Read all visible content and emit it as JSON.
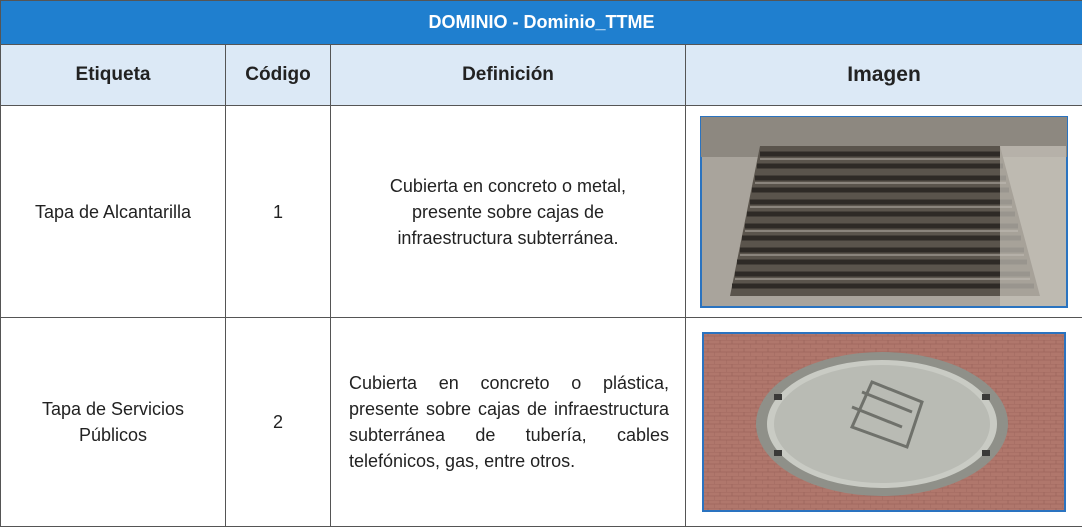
{
  "header": {
    "title": "DOMINIO -  Dominio_TTME"
  },
  "table": {
    "columns": [
      "Etiqueta",
      "Código",
      "Definición",
      "Imagen"
    ],
    "rows": [
      [
        "Tapa de Alcantarilla",
        "1",
        "Cubierta en concreto o metal, presente sobre cajas de infraestructura subterránea."
      ],
      [
        "Tapa de Servicios Públicos",
        "2",
        "Cubierta en concreto o plástica, presente sobre cajas de infraestructura subterránea de tubería, cables telefónicos, gas, entre otros."
      ]
    ]
  }
}
